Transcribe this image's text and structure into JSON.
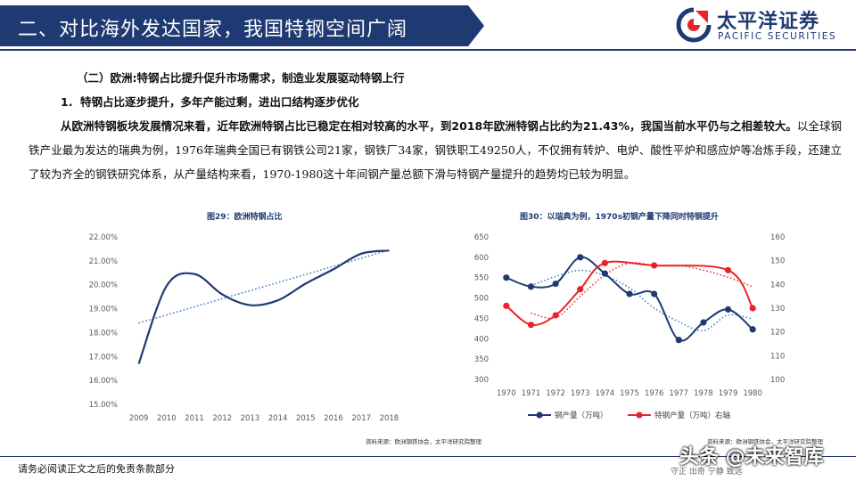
{
  "header": {
    "title": "二、对比海外发达国家，我国特钢空间广阔",
    "logo_cn": "太平洋证券",
    "logo_en": "PACIFIC SECURITIES",
    "brand_color": "#1f3a73"
  },
  "section": {
    "heading": "（二）欧洲:特钢占比提升促升市场需求，制造业发展驱动特钢上行",
    "sub_number": "1.",
    "sub_heading": "特钢占比逐步提升，多年产能过剩，进出口结构逐步优化",
    "para_bold": "从欧洲特钢板块发展情况来看，近年欧洲特钢占比已稳定在相对较高的水平，到2018年欧洲特钢占比约为21.43%，我国当前水平仍与之相差较大。",
    "para_rest": "以全球钢铁产业最为发达的瑞典为例，1976年瑞典全国已有钢铁公司21家，钢铁厂34家，钢铁职工49250人，不仅拥有转炉、电炉、酸性平炉和感应炉等冶炼手段，还建立了较为齐全的钢铁研究体系，从产量结构来看，1970-1980这十年间钢产量总额下滑与特钢产量提升的趋势均已较为明显。"
  },
  "figures": {
    "fig29_title": "图29：欧洲特钢占比",
    "fig30_title": "图30：以瑞典为例，1970s初钢产量下降同时特钢提升",
    "source1": "资料来源：欧洲钢铁协会，太平洋研究院整理",
    "source2": "资料来源：欧洲钢铁协会，太平洋研究院整理",
    "legend_steel": "钢产量（万吨）",
    "legend_special": "特钢产量（万吨）右轴"
  },
  "footer": {
    "disclaimer": "请务必阅读正文之后的免责条款部分",
    "right_text": "守正  出奇  宁静  致远",
    "watermark": "头条 @未来智库"
  },
  "chart_data": [
    {
      "type": "line",
      "title": "图29：欧洲特钢占比",
      "x": [
        "2009",
        "2010",
        "2011",
        "2012",
        "2013",
        "2014",
        "2015",
        "2016",
        "2017",
        "2018"
      ],
      "series": [
        {
          "values": [
            0.167,
            0.1995,
            0.2045,
            0.196,
            0.1915,
            0.1935,
            0.2005,
            0.2065,
            0.213,
            0.2143
          ],
          "color": "#1f3a73"
        }
      ],
      "trendline": {
        "start": 0.184,
        "end": 0.2145,
        "color": "#3b7bc8",
        "style": "dotted"
      },
      "ylim": [
        0.15,
        0.22
      ],
      "yticks": [
        "15.00%",
        "16.00%",
        "17.00%",
        "18.00%",
        "19.00%",
        "20.00%",
        "21.00%",
        "22.00%"
      ],
      "grid": false,
      "legend": "none"
    },
    {
      "type": "line",
      "title": "图30：以瑞典为例，1970s初钢产量下降同时特钢提升",
      "x": [
        "1970",
        "1971",
        "1972",
        "1973",
        "1974",
        "1975",
        "1976",
        "1977",
        "1978",
        "1979",
        "1980"
      ],
      "series": [
        {
          "name": "钢产量（万吨）",
          "axis": "left",
          "color": "#1f3a73",
          "values": [
            550,
            528,
            535,
            600,
            560,
            510,
            510,
            397,
            440,
            472,
            423
          ]
        },
        {
          "name": "特钢产量（万吨）右轴",
          "axis": "right",
          "color": "#e8242a",
          "values": [
            131,
            123,
            127,
            138,
            149,
            null,
            148,
            null,
            null,
            146,
            130
          ]
        }
      ],
      "trend_left": [
        null,
        530,
        553,
        568,
        555,
        525,
        475,
        442,
        420,
        458,
        448
      ],
      "trend_right": [
        null,
        128,
        126,
        135,
        144,
        149,
        148,
        148,
        146,
        143,
        139
      ],
      "ylim_left": [
        300,
        650
      ],
      "ylim_right": [
        100,
        160
      ],
      "yticks_left": [
        "300",
        "350",
        "400",
        "450",
        "500",
        "550",
        "600",
        "650"
      ],
      "yticks_right": [
        "100",
        "110",
        "120",
        "130",
        "140",
        "150",
        "160"
      ],
      "grid": false,
      "legend": "bottom"
    }
  ]
}
